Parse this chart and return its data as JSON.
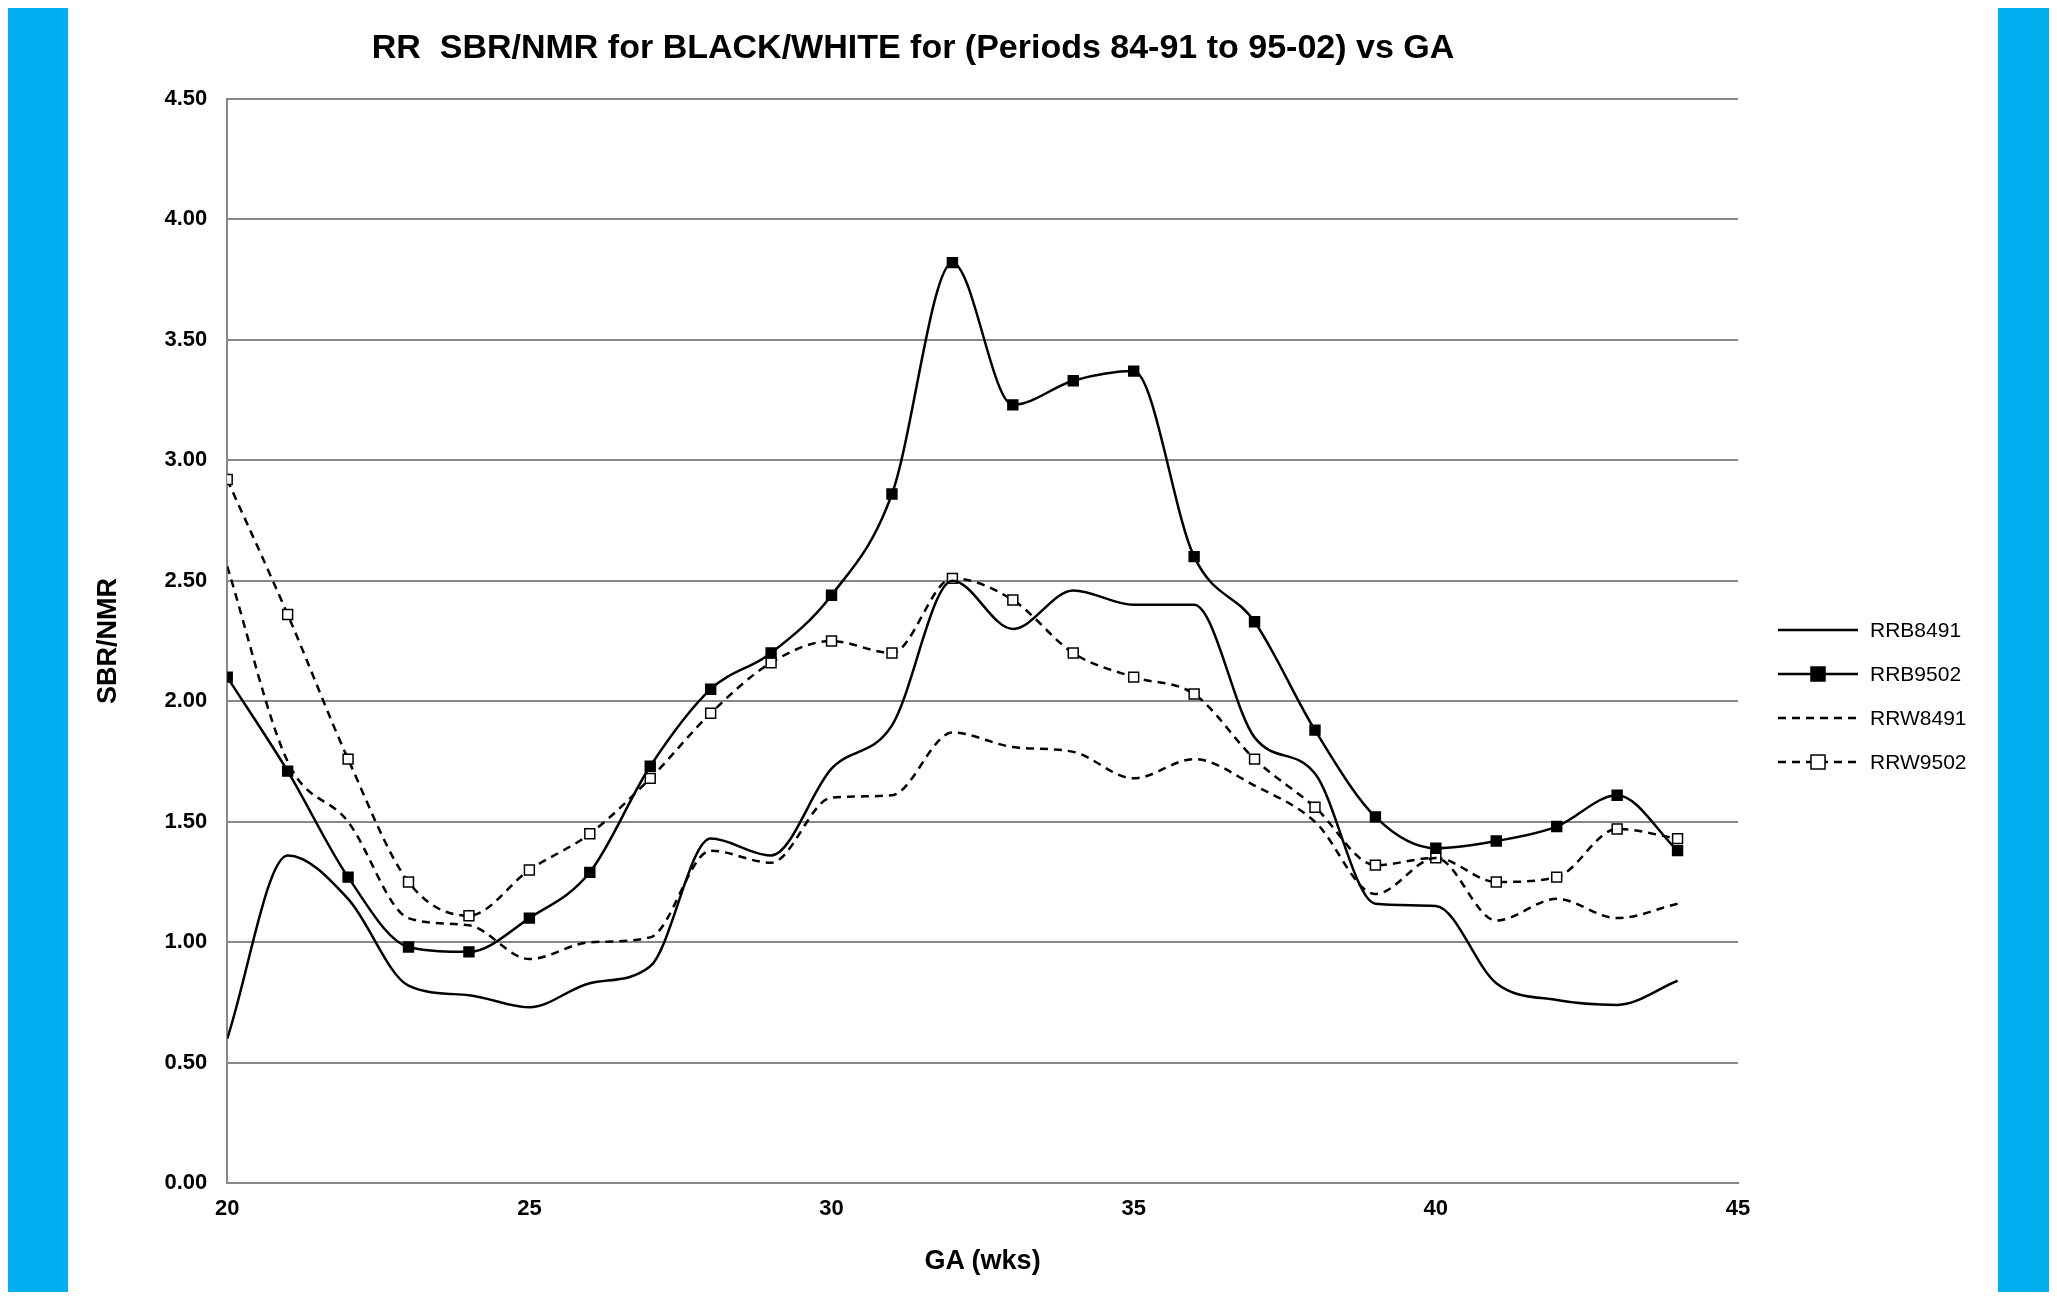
{
  "chart_data": {
    "type": "line",
    "title": "RR  SBR/NMR for BLACK/WHITE for (Periods 84-91 to 95-02) vs GA",
    "xlabel": "GA (wks)",
    "ylabel": "SBR/NMR",
    "x": [
      20,
      21,
      22,
      23,
      24,
      25,
      26,
      27,
      28,
      29,
      30,
      31,
      32,
      33,
      34,
      35,
      36,
      37,
      38,
      39,
      40,
      41,
      42,
      43,
      44
    ],
    "series": [
      {
        "name": "RRB8491",
        "color": "#000000",
        "marker": "none",
        "line_style": "solid",
        "values": [
          0.6,
          1.36,
          1.18,
          0.82,
          0.78,
          0.73,
          0.83,
          0.9,
          1.43,
          1.36,
          1.72,
          1.9,
          2.5,
          2.3,
          2.46,
          2.4,
          2.4,
          1.85,
          1.7,
          1.16,
          1.15,
          0.83,
          0.76,
          0.74,
          0.84
        ]
      },
      {
        "name": "RRB9502",
        "color": "#000000",
        "marker": "square",
        "line_style": "solid",
        "values": [
          2.1,
          1.71,
          1.27,
          0.98,
          0.96,
          1.1,
          1.29,
          1.73,
          2.05,
          2.2,
          2.44,
          2.86,
          3.82,
          3.23,
          3.33,
          3.37,
          2.6,
          2.33,
          1.88,
          1.52,
          1.39,
          1.42,
          1.48,
          1.61,
          1.38
        ]
      },
      {
        "name": "RRW8491",
        "color": "#000000",
        "marker": "none",
        "line_style": "dashed",
        "values": [
          2.56,
          1.75,
          1.5,
          1.1,
          1.07,
          0.93,
          1.0,
          1.02,
          1.38,
          1.33,
          1.6,
          1.61,
          1.87,
          1.81,
          1.79,
          1.68,
          1.76,
          1.65,
          1.5,
          1.2,
          1.35,
          1.09,
          1.18,
          1.1,
          1.16
        ]
      },
      {
        "name": "RRW9502",
        "color": "#000000",
        "marker": "square",
        "line_style": "dashed",
        "values": [
          2.92,
          2.36,
          1.76,
          1.25,
          1.11,
          1.3,
          1.45,
          1.68,
          1.95,
          2.16,
          2.25,
          2.2,
          2.51,
          2.42,
          2.2,
          2.1,
          2.03,
          1.76,
          1.56,
          1.32,
          1.35,
          1.25,
          1.27,
          1.47,
          1.43
        ]
      }
    ],
    "xlim": [
      20,
      45
    ],
    "xticks": [
      20,
      25,
      30,
      35,
      40,
      45
    ],
    "ylim": [
      0,
      4.5
    ],
    "yticks": [
      {
        "value": 0,
        "label": "0.00"
      },
      {
        "value": 0.5,
        "label": "0.50"
      },
      {
        "value": 1,
        "label": "1.00"
      },
      {
        "value": 1.5,
        "label": "1.50"
      },
      {
        "value": 2,
        "label": "2.00"
      },
      {
        "value": 2.5,
        "label": "2.50"
      },
      {
        "value": 3,
        "label": "3.00"
      },
      {
        "value": 3.5,
        "label": "3.50"
      },
      {
        "value": 4,
        "label": "4.00"
      },
      {
        "value": 4.5,
        "label": "4.50"
      }
    ],
    "grid": "y",
    "legend": "right"
  }
}
